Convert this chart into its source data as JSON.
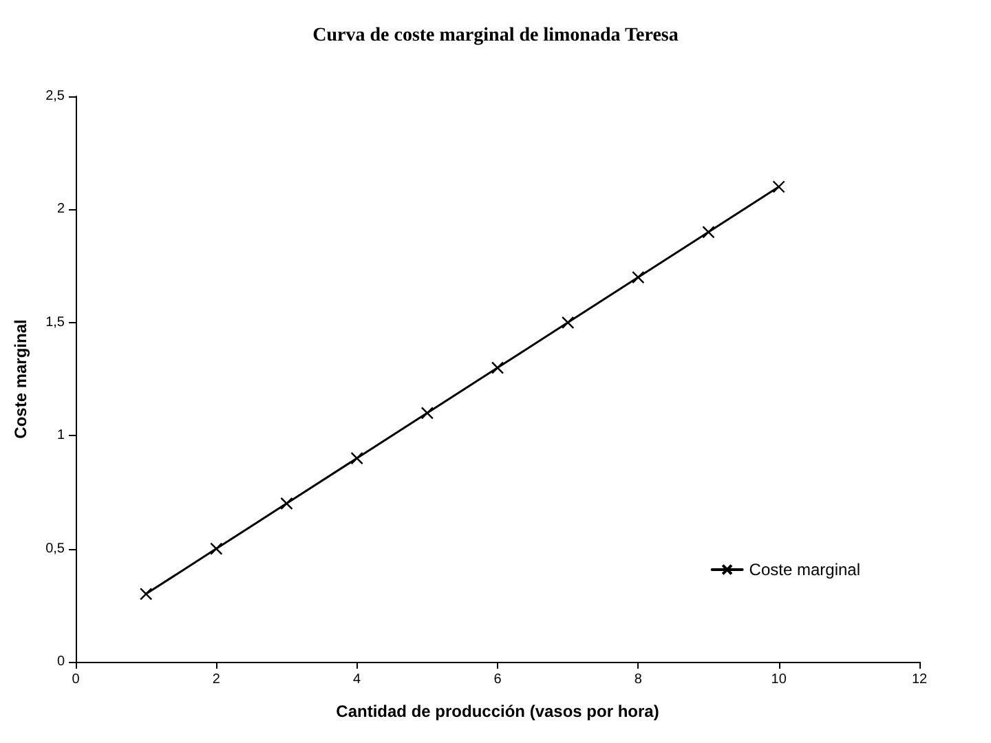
{
  "chart_data": {
    "type": "line",
    "title": "Curva de coste marginal de limonada Teresa",
    "xlabel": "Cantidad de producción (vasos por hora)",
    "ylabel": "Coste marginal",
    "x": [
      1,
      2,
      3,
      4,
      5,
      6,
      7,
      8,
      9,
      10
    ],
    "series": [
      {
        "name": "Coste marginal",
        "color": "#000000",
        "values": [
          0.3,
          0.5,
          0.7,
          0.9,
          1.1,
          1.3,
          1.5,
          1.7,
          1.9,
          2.1
        ]
      }
    ],
    "xlim": [
      0,
      12
    ],
    "xticks": [
      0,
      2,
      4,
      6,
      8,
      10,
      12
    ],
    "ylim": [
      0,
      2.5
    ],
    "yticks": [
      0,
      {
        "value": 0.5,
        "label": "0,5"
      },
      1,
      {
        "value": 1.5,
        "label": "1,5"
      },
      2,
      {
        "value": 2.5,
        "label": "2,5"
      }
    ],
    "grid": false,
    "legend": "bottom right",
    "marker": "cross",
    "line_style": "solid"
  }
}
